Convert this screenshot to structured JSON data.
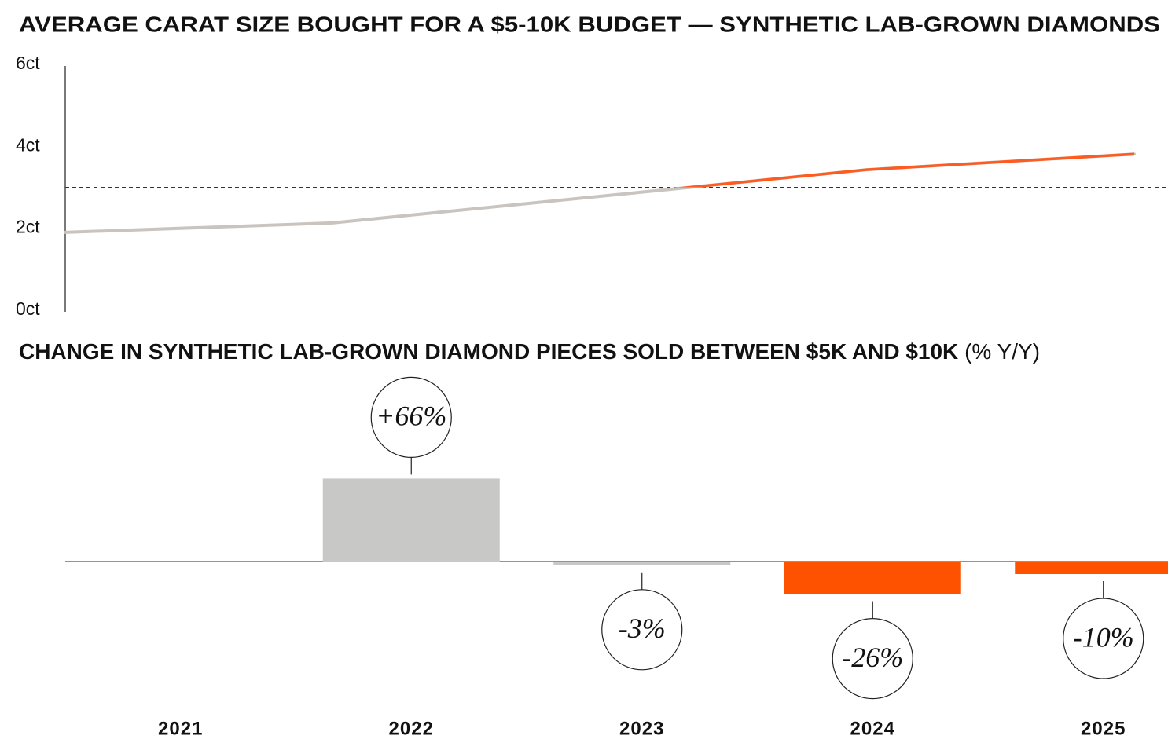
{
  "chart_data": [
    {
      "type": "line",
      "title": "AVERAGE CARAT SIZE BOUGHT FOR A $5-10K BUDGET — SYNTHETIC LAB-GROWN DIAMONDS",
      "categories": [
        null,
        null,
        null,
        null,
        null
      ],
      "values": [
        1.9,
        2.13,
        2.78,
        3.43,
        3.81
      ],
      "color": "#c9c4bf",
      "highlight_color": "#ff5a1f",
      "reference_line": 3,
      "ylim": [
        0,
        6
      ],
      "yticks": [
        {
          "value": 0,
          "label": "0ct"
        },
        {
          "value": 2,
          "label": "2ct"
        },
        {
          "value": 4,
          "label": "4ct"
        },
        {
          "value": 6,
          "label": "6ct"
        }
      ],
      "grid": false
    },
    {
      "type": "bar",
      "title": "CHANGE IN SYNTHETIC LAB-GROWN DIAMOND PIECES SOLD BETWEEN $5K AND $10K",
      "title_unit": "(% Y/Y)",
      "categories": [
        "2021",
        "2022",
        "2023",
        "2024",
        "2025"
      ],
      "values": [
        null,
        66,
        -3,
        -26,
        -10
      ],
      "value_labels": [
        null,
        "+66%",
        "-3%",
        "-26%",
        "-10%"
      ],
      "colors": [
        "#c8c9c6",
        "#c8c9c6",
        "#c8c9c6",
        "#ff5200",
        "#ff5200"
      ],
      "ylim": [
        -110,
        150
      ]
    }
  ]
}
